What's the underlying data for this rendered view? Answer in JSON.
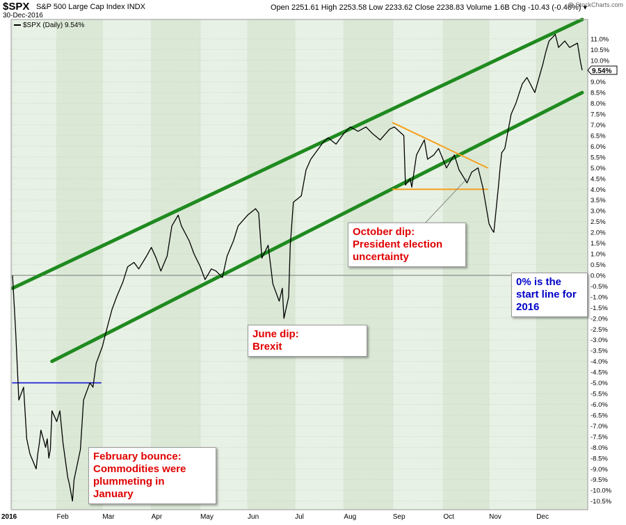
{
  "header": {
    "ticker": "$SPX",
    "description": "S&P 500 Large Cap Index INDX",
    "date": "30-Dec-2016",
    "ohlc": "Open 2251.61  High 2253.58  Low 2233.62  Close 2238.83  Volume 1.6B  Chg -10.43 (-0.46%) ▾",
    "brand": "@ StockCharts.com"
  },
  "legend": {
    "label": "$SPX (Daily) 9.54%"
  },
  "last_value_label": "9.54%",
  "annotations": {
    "february": [
      "February bounce:",
      "Commodities were",
      "plummeting in",
      "January"
    ],
    "june": [
      "June dip:",
      "Brexit"
    ],
    "october": [
      "October dip:",
      "President election",
      "uncertainty"
    ],
    "start_line": [
      "0% is the",
      "start line for",
      "2016"
    ]
  },
  "colors": {
    "plot_bg": "#e8f1e5",
    "alt_band": "#dbe8d6",
    "grid": "#c5d5c2",
    "series": "#000000",
    "channel": "#1f8a1f",
    "triangle": "#f5a01e",
    "feb_line": "#1414d2",
    "label_red": "#e00000",
    "label_blue": "#0000c8"
  },
  "chart_data": {
    "type": "line",
    "title": "$SPX S&P 500 Large Cap Index INDX",
    "series": [
      {
        "name": "$SPX (Daily) 9.54%",
        "x": [
          "2016-01-04",
          "2016-01-05",
          "2016-01-06",
          "2016-01-08",
          "2016-01-11",
          "2016-01-13",
          "2016-01-15",
          "2016-01-19",
          "2016-01-20",
          "2016-01-21",
          "2016-01-22",
          "2016-01-25",
          "2016-01-26",
          "2016-01-27",
          "2016-01-28",
          "2016-01-29",
          "2016-02-01",
          "2016-02-03",
          "2016-02-05",
          "2016-02-08",
          "2016-02-09",
          "2016-02-11",
          "2016-02-12",
          "2016-02-16",
          "2016-02-18",
          "2016-02-22",
          "2016-02-24",
          "2016-02-26",
          "2016-03-01",
          "2016-03-03",
          "2016-03-07",
          "2016-03-10",
          "2016-03-14",
          "2016-03-17",
          "2016-03-21",
          "2016-03-24",
          "2016-03-29",
          "2016-04-01",
          "2016-04-04",
          "2016-04-07",
          "2016-04-11",
          "2016-04-14",
          "2016-04-18",
          "2016-04-20",
          "2016-04-25",
          "2016-04-28",
          "2016-05-02",
          "2016-05-05",
          "2016-05-09",
          "2016-05-12",
          "2016-05-16",
          "2016-05-19",
          "2016-05-23",
          "2016-05-26",
          "2016-06-01",
          "2016-06-06",
          "2016-06-08",
          "2016-06-10",
          "2016-06-14",
          "2016-06-17",
          "2016-06-21",
          "2016-06-23",
          "2016-06-24",
          "2016-06-27",
          "2016-06-28",
          "2016-06-30",
          "2016-07-05",
          "2016-07-08",
          "2016-07-11",
          "2016-07-14",
          "2016-07-19",
          "2016-07-22",
          "2016-07-27",
          "2016-08-01",
          "2016-08-05",
          "2016-08-10",
          "2016-08-15",
          "2016-08-19",
          "2016-08-24",
          "2016-08-30",
          "2016-09-02",
          "2016-09-08",
          "2016-09-09",
          "2016-09-12",
          "2016-09-13",
          "2016-09-16",
          "2016-09-21",
          "2016-09-23",
          "2016-09-27",
          "2016-09-30",
          "2016-10-05",
          "2016-10-10",
          "2016-10-13",
          "2016-10-18",
          "2016-10-21",
          "2016-10-25",
          "2016-10-28",
          "2016-11-01",
          "2016-11-03",
          "2016-11-04",
          "2016-11-07",
          "2016-11-08",
          "2016-11-09",
          "2016-11-11",
          "2016-11-15",
          "2016-11-18",
          "2016-11-22",
          "2016-11-25",
          "2016-11-30",
          "2016-12-05",
          "2016-12-07",
          "2016-12-09",
          "2016-12-13",
          "2016-12-15",
          "2016-12-19",
          "2016-12-22",
          "2016-12-27",
          "2016-12-29",
          "2016-12-30"
        ],
        "values": [
          0,
          -1.3,
          -2.6,
          -5.8,
          -5.2,
          -7.6,
          -8.3,
          -9.0,
          -8.3,
          -7.8,
          -7.2,
          -8.0,
          -7.6,
          -8.5,
          -8.1,
          -6.3,
          -6.8,
          -6.3,
          -7.8,
          -9.4,
          -9.7,
          -10.5,
          -9.5,
          -8.1,
          -5.8,
          -5.0,
          -5.2,
          -4.1,
          -3.3,
          -2.7,
          -1.6,
          -1.0,
          -0.3,
          0.4,
          0.6,
          0.3,
          0.9,
          1.3,
          0.8,
          0.2,
          0.9,
          2.3,
          2.8,
          2.3,
          1.6,
          1.0,
          0.4,
          -0.2,
          0.3,
          0.2,
          -0.1,
          0.9,
          1.6,
          2.3,
          2.8,
          3.1,
          2.9,
          0.8,
          1.4,
          -0.4,
          -1.2,
          -0.6,
          -2.0,
          -1.0,
          1.4,
          3.4,
          3.7,
          4.9,
          5.4,
          5.7,
          6.2,
          6.4,
          6.1,
          6.6,
          6.9,
          6.7,
          6.9,
          6.6,
          6.3,
          6.8,
          6.9,
          6.5,
          4.2,
          4.5,
          4.1,
          5.6,
          6.3,
          5.4,
          5.6,
          5.9,
          5.0,
          5.6,
          4.9,
          4.3,
          4.8,
          5.0,
          4.1,
          2.4,
          2.1,
          2.0,
          4.2,
          5.0,
          5.7,
          5.9,
          7.5,
          8.0,
          8.9,
          9.2,
          8.5,
          9.8,
          10.4,
          10.9,
          11.2,
          10.6,
          10.9,
          10.6,
          10.8,
          9.9,
          9.54
        ]
      }
    ],
    "xlabel": "",
    "ylabel": "",
    "x_range": [
      "2016-01-04",
      "2016-12-30"
    ],
    "x_tick_labels": [
      "2016",
      "Feb",
      "Mar",
      "Apr",
      "May",
      "Jun",
      "Jul",
      "Aug",
      "Sep",
      "Oct",
      "Nov",
      "Dec"
    ],
    "ylim": [
      -10.9,
      11.9
    ],
    "y_tick_labels": [
      "11.0%",
      "10.5%",
      "10.0%",
      "9.5%",
      "9.0%",
      "8.5%",
      "8.0%",
      "7.5%",
      "7.0%",
      "6.5%",
      "6.0%",
      "5.5%",
      "5.0%",
      "4.5%",
      "4.0%",
      "3.5%",
      "3.0%",
      "2.5%",
      "2.0%",
      "1.5%",
      "1.0%",
      "0.5%",
      "0.0%",
      "-0.5%",
      "-1.0%",
      "-1.5%",
      "-2.0%",
      "-2.5%",
      "-3.0%",
      "-3.5%",
      "-4.0%",
      "-4.5%",
      "-5.0%",
      "-5.5%",
      "-6.0%",
      "-6.5%",
      "-7.0%",
      "-7.5%",
      "-8.0%",
      "-8.5%",
      "-9.0%",
      "-9.5%",
      "-10.0%",
      "-10.5%"
    ],
    "grid": true,
    "overlays": {
      "upper_channel": [
        [
          "2016-01-04",
          -0.6
        ],
        [
          "2016-12-30",
          11.9
        ]
      ],
      "lower_channel": [
        [
          "2016-01-29",
          -4.0
        ],
        [
          "2016-12-30",
          8.5
        ]
      ],
      "triangle_upper": [
        [
          "2016-09-01",
          7.1
        ],
        [
          "2016-10-31",
          5.0
        ]
      ],
      "triangle_lower": [
        [
          "2016-09-01",
          4.0
        ],
        [
          "2016-10-31",
          4.0
        ]
      ],
      "february_resistance": [
        [
          "2016-01-04",
          -5.0
        ],
        [
          "2016-02-29",
          -5.0
        ]
      ],
      "zero_line": 0
    }
  }
}
